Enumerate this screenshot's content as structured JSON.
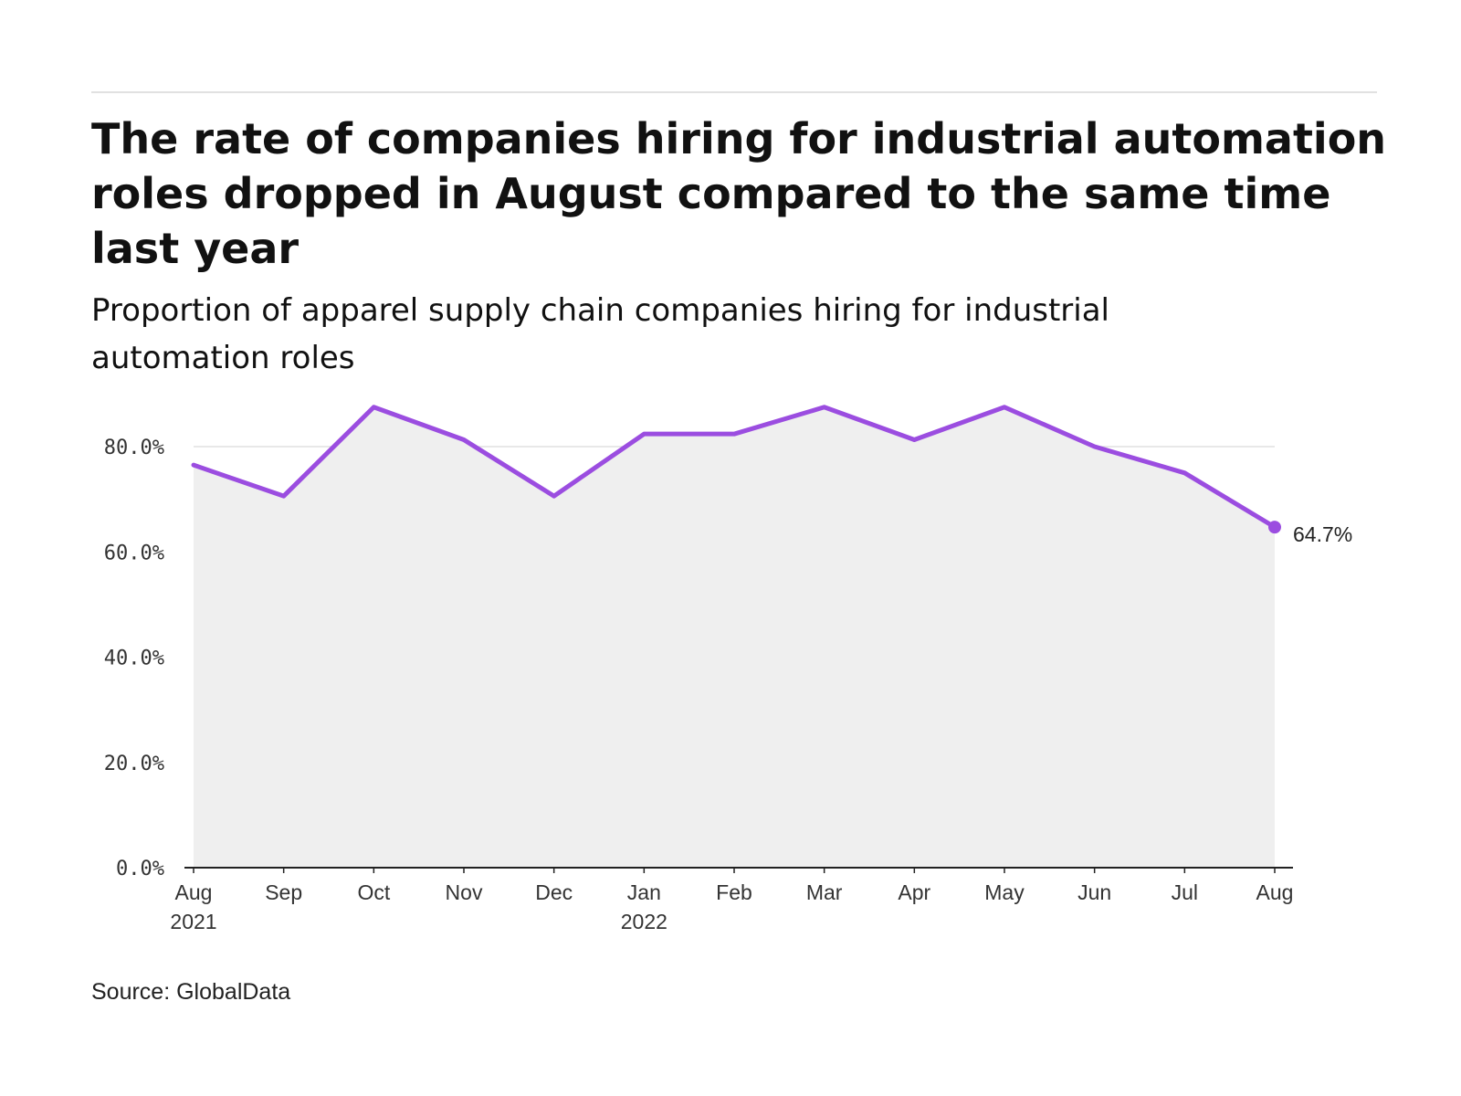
{
  "header": {
    "title": "The rate of companies hiring for industrial automation roles dropped in August compared to the same time last year",
    "subtitle": "Proportion of apparel supply chain companies hiring for industrial automation roles"
  },
  "footer": {
    "source": "Source: GlobalData"
  },
  "colors": {
    "line": "#9b4de0",
    "area": "#efefef",
    "grid": "#e0e0e0",
    "axis": "#222222"
  },
  "chart_data": {
    "type": "area",
    "title": "The rate of companies hiring for industrial automation roles dropped in August compared to the same time last year",
    "subtitle": "Proportion of apparel supply chain companies hiring for industrial automation roles",
    "x": [
      "Aug 2021",
      "Sep 2021",
      "Oct 2021",
      "Nov 2021",
      "Dec 2021",
      "Jan 2022",
      "Feb 2022",
      "Mar 2022",
      "Apr 2022",
      "May 2022",
      "Jun 2022",
      "Jul 2022",
      "Aug 2022"
    ],
    "x_tick_labels": [
      {
        "month": "Aug",
        "year": "2021"
      },
      {
        "month": "Sep",
        "year": ""
      },
      {
        "month": "Oct",
        "year": ""
      },
      {
        "month": "Nov",
        "year": ""
      },
      {
        "month": "Dec",
        "year": ""
      },
      {
        "month": "Jan",
        "year": "2022"
      },
      {
        "month": "Feb",
        "year": ""
      },
      {
        "month": "Mar",
        "year": ""
      },
      {
        "month": "Apr",
        "year": ""
      },
      {
        "month": "May",
        "year": ""
      },
      {
        "month": "Jun",
        "year": ""
      },
      {
        "month": "Jul",
        "year": ""
      },
      {
        "month": "Aug",
        "year": ""
      }
    ],
    "series": [
      {
        "values": [
          76.5,
          70.6,
          87.5,
          81.3,
          70.6,
          82.4,
          82.4,
          87.5,
          81.3,
          87.5,
          80.0,
          75.0,
          64.7
        ]
      }
    ],
    "ylim": [
      0,
      90
    ],
    "y_ticks": [
      {
        "value": 0,
        "label": "0.0%"
      },
      {
        "value": 20,
        "label": "20.0%"
      },
      {
        "value": 40,
        "label": "40.0%"
      },
      {
        "value": 60,
        "label": "60.0%"
      },
      {
        "value": 80,
        "label": "80.0%"
      }
    ],
    "end_label": "64.7%",
    "grid": true,
    "legend": "none"
  }
}
